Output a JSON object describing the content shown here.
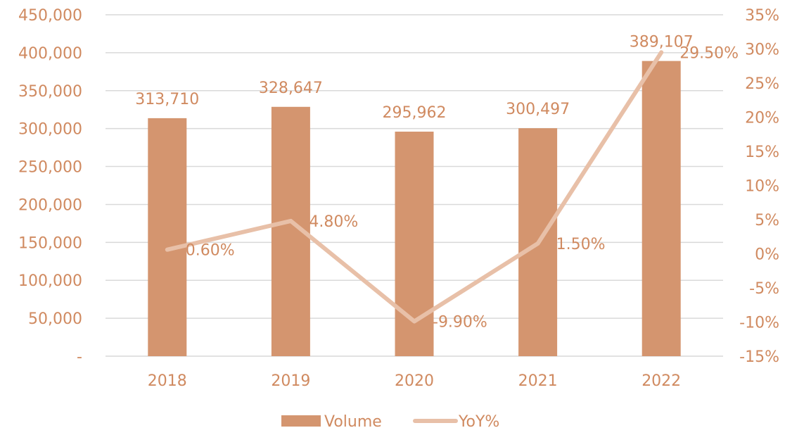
{
  "chart_data": {
    "type": "bar",
    "categories": [
      "2018",
      "2019",
      "2020",
      "2021",
      "2022"
    ],
    "series": [
      {
        "name": "Volume",
        "type": "bar",
        "axis": "left",
        "values": [
          313710,
          328647,
          295962,
          300497,
          389107
        ],
        "labels": [
          "313,710",
          "328,647",
          "295,962",
          "300,497",
          "389,107"
        ]
      },
      {
        "name": "YoY%",
        "type": "line",
        "axis": "right",
        "values": [
          0.6,
          4.8,
          -9.9,
          1.5,
          29.5
        ],
        "labels": [
          "0.60%",
          "4.80%",
          "-9.90%",
          "1.50%",
          "29.50%"
        ]
      }
    ],
    "y_left": {
      "min": 0,
      "max": 450000,
      "ticks": [
        {
          "value": 0,
          "label": "-"
        },
        {
          "value": 50000,
          "label": "50,000"
        },
        {
          "value": 100000,
          "label": "100,000"
        },
        {
          "value": 150000,
          "label": "150,000"
        },
        {
          "value": 200000,
          "label": "200,000"
        },
        {
          "value": 250000,
          "label": "250,000"
        },
        {
          "value": 300000,
          "label": "300,000"
        },
        {
          "value": 350000,
          "label": "350,000"
        },
        {
          "value": 400000,
          "label": "400,000"
        },
        {
          "value": 450000,
          "label": "450,000"
        }
      ]
    },
    "y_right": {
      "min": -15,
      "max": 35,
      "ticks": [
        {
          "value": -15,
          "label": "-15%"
        },
        {
          "value": -10,
          "label": "-10%"
        },
        {
          "value": -5,
          "label": "-5%"
        },
        {
          "value": 0,
          "label": "0%"
        },
        {
          "value": 5,
          "label": "5%"
        },
        {
          "value": 10,
          "label": "10%"
        },
        {
          "value": 15,
          "label": "15%"
        },
        {
          "value": 20,
          "label": "20%"
        },
        {
          "value": 25,
          "label": "25%"
        },
        {
          "value": 30,
          "label": "30%"
        },
        {
          "value": 35,
          "label": "35%"
        }
      ]
    },
    "grid": true,
    "legend_position": "bottom",
    "colors": {
      "bar": "#D4956F",
      "line": "#E8C0A8",
      "text": "#D08A60",
      "grid": "#D9D9D9"
    }
  }
}
